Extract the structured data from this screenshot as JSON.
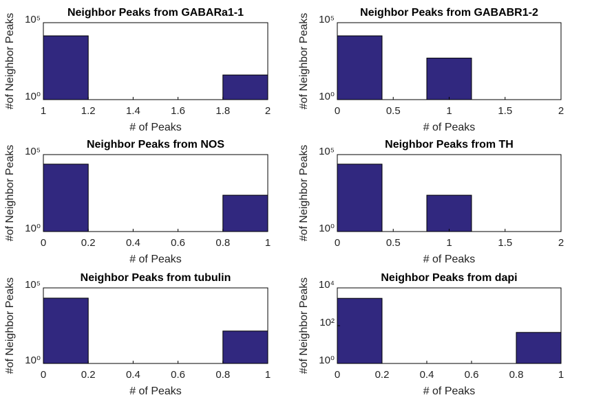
{
  "chart_data": [
    {
      "type": "histogram",
      "title": "Neighbor Peaks from GABARa1-1",
      "xlabel": "# of Peaks",
      "ylabel": "#of Neighbor Peaks",
      "bins": [
        1,
        1.2,
        1.4,
        1.6,
        1.8,
        2
      ],
      "values": [
        14000,
        0,
        0,
        0,
        40
      ],
      "color": "#31287f",
      "log_y": true,
      "xlim": [
        1,
        2
      ],
      "xticks": [
        1,
        1.2,
        1.4,
        1.6,
        1.8,
        2
      ],
      "ylim": [
        1,
        100000
      ],
      "yticks": [
        {
          "value": 1,
          "label": "10⁰"
        },
        {
          "value": 100000,
          "label": "10⁵"
        }
      ]
    },
    {
      "type": "histogram",
      "title": "Neighbor Peaks from GABABR1-2",
      "xlabel": "# of Peaks",
      "ylabel": "#of Neighbor Peaks",
      "bins": [
        0,
        0.4,
        0.8,
        1.2,
        1.6,
        2
      ],
      "values": [
        14000,
        0,
        500,
        0,
        0
      ],
      "color": "#31287f",
      "log_y": true,
      "xlim": [
        0,
        2
      ],
      "xticks": [
        0,
        0.5,
        1,
        1.5,
        2
      ],
      "ylim": [
        1,
        100000
      ],
      "yticks": [
        {
          "value": 1,
          "label": "10⁰"
        },
        {
          "value": 100000,
          "label": "10⁵"
        }
      ]
    },
    {
      "type": "histogram",
      "title": "Neighbor Peaks from NOS",
      "xlabel": "# of Peaks",
      "ylabel": "#of Neighbor Peaks",
      "bins": [
        0,
        0.2,
        0.4,
        0.6,
        0.8,
        1
      ],
      "values": [
        24000,
        0,
        0,
        0,
        230
      ],
      "color": "#31287f",
      "log_y": true,
      "xlim": [
        0,
        1
      ],
      "xticks": [
        0,
        0.2,
        0.4,
        0.6,
        0.8,
        1
      ],
      "ylim": [
        1,
        100000
      ],
      "yticks": [
        {
          "value": 1,
          "label": "10⁰"
        },
        {
          "value": 100000,
          "label": "10⁵"
        }
      ]
    },
    {
      "type": "histogram",
      "title": "Neighbor Peaks from TH",
      "xlabel": "# of Peaks",
      "ylabel": "#of Neighbor Peaks",
      "bins": [
        0,
        0.4,
        0.8,
        1.2,
        1.6,
        2
      ],
      "values": [
        24000,
        0,
        230,
        0,
        0
      ],
      "color": "#31287f",
      "log_y": true,
      "xlim": [
        0,
        2
      ],
      "xticks": [
        0,
        0.5,
        1,
        1.5,
        2
      ],
      "ylim": [
        1,
        100000
      ],
      "yticks": [
        {
          "value": 1,
          "label": "10⁰"
        },
        {
          "value": 100000,
          "label": "10⁵"
        }
      ]
    },
    {
      "type": "histogram",
      "title": "Neighbor Peaks from tubulin",
      "xlabel": "# of Peaks",
      "ylabel": "#of Neighbor Peaks",
      "bins": [
        0,
        0.2,
        0.4,
        0.6,
        0.8,
        1
      ],
      "values": [
        21000,
        0,
        0,
        0,
        140
      ],
      "color": "#31287f",
      "log_y": true,
      "xlim": [
        0,
        1
      ],
      "xticks": [
        0,
        0.2,
        0.4,
        0.6,
        0.8,
        1
      ],
      "ylim": [
        1,
        100000
      ],
      "yticks": [
        {
          "value": 1,
          "label": "10⁰"
        },
        {
          "value": 100000,
          "label": "10⁵"
        }
      ]
    },
    {
      "type": "histogram",
      "title": "Neighbor Peaks from dapi",
      "xlabel": "# of Peaks",
      "ylabel": "#of Neighbor Peaks",
      "bins": [
        0,
        0.2,
        0.4,
        0.6,
        0.8,
        1
      ],
      "values": [
        2800,
        0,
        0,
        0,
        44
      ],
      "color": "#31287f",
      "log_y": true,
      "xlim": [
        0,
        1
      ],
      "xticks": [
        0,
        0.2,
        0.4,
        0.6,
        0.8,
        1
      ],
      "ylim": [
        1,
        10000
      ],
      "yticks": [
        {
          "value": 1,
          "label": "10⁰"
        },
        {
          "value": 100,
          "label": "10²"
        },
        {
          "value": 10000,
          "label": "10⁴"
        }
      ]
    }
  ]
}
